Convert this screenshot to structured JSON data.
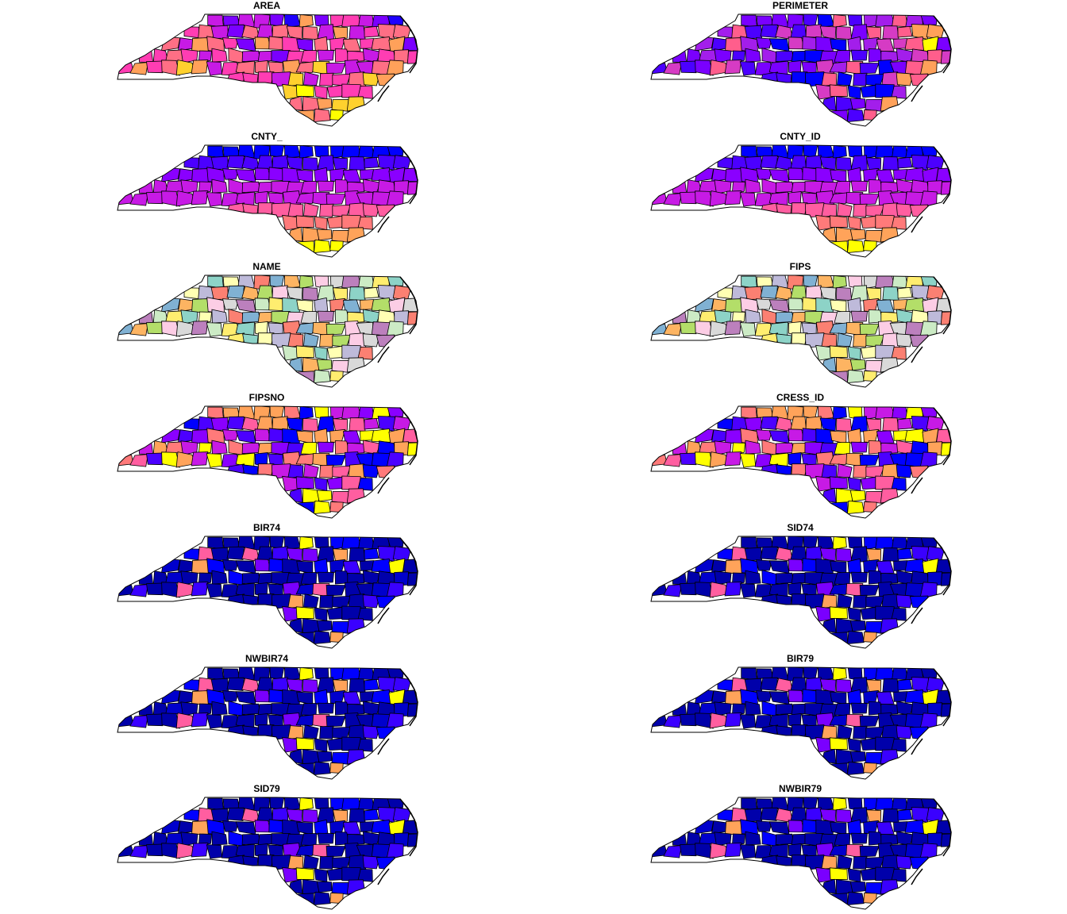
{
  "figure": {
    "panels": [
      {
        "title": "AREA",
        "palette": [
          "#1E00FF",
          "#7A00FF",
          "#C71AE5",
          "#FF3DB3",
          "#FF6F85",
          "#FFA15A",
          "#FFD12E",
          "#FFFF00"
        ],
        "mode": "area"
      },
      {
        "title": "PERIMETER",
        "palette": [
          "#0000FF",
          "#4B00FF",
          "#7A00FF",
          "#A31EEB",
          "#D63BC4",
          "#FF5E8C",
          "#FFA15A",
          "#FFFF00"
        ],
        "mode": "perimeter"
      },
      {
        "title": "CNTY_",
        "palette": [
          "#0000FF",
          "#4B00FF",
          "#8A00FF",
          "#C71AE5",
          "#FF5EA0",
          "#FF7A7A",
          "#FFA35A",
          "#FFFF00"
        ],
        "mode": "lat"
      },
      {
        "title": "CNTY_ID",
        "palette": [
          "#0000FF",
          "#4B00FF",
          "#8A00FF",
          "#C71AE5",
          "#FF5EA0",
          "#FF7A7A",
          "#FFA35A",
          "#FFFF00"
        ],
        "mode": "lat"
      },
      {
        "title": "NAME",
        "palette": [
          "#8DD3C7",
          "#FFFFB3",
          "#BEBADA",
          "#FB8072",
          "#80B1D3",
          "#FDB462",
          "#B3DE69",
          "#FCCDE5",
          "#D9D9D9",
          "#BC80BD",
          "#CCEBC5",
          "#FFED6F"
        ],
        "mode": "categorical"
      },
      {
        "title": "FIPS",
        "palette": [
          "#8DD3C7",
          "#FFFFB3",
          "#BEBADA",
          "#FB8072",
          "#80B1D3",
          "#FDB462",
          "#B3DE69",
          "#FCCDE5",
          "#D9D9D9",
          "#BC80BD",
          "#CCEBC5",
          "#FFED6F"
        ],
        "mode": "categorical"
      },
      {
        "title": "FIPSNO",
        "palette": [
          "#0000FF",
          "#4B00FF",
          "#8A00FF",
          "#C71AE5",
          "#FF5EA0",
          "#FF7A7A",
          "#FFA35A",
          "#FFFF00"
        ],
        "mode": "random"
      },
      {
        "title": "CRESS_ID",
        "palette": [
          "#0000FF",
          "#4B00FF",
          "#8A00FF",
          "#C71AE5",
          "#FF5EA0",
          "#FF7A7A",
          "#FFA35A",
          "#FFFF00"
        ],
        "mode": "random"
      },
      {
        "title": "BIR74",
        "palette": [
          "#0000AA",
          "#0000CC",
          "#0000FF",
          "#3A00FF",
          "#7A00FF",
          "#FF5EA0",
          "#FFA35A",
          "#FFFF00"
        ],
        "mode": "skew"
      },
      {
        "title": "SID74",
        "palette": [
          "#0000AA",
          "#0000CC",
          "#0000FF",
          "#3A00FF",
          "#7A00FF",
          "#FF5EA0",
          "#FFA35A",
          "#FFFF00"
        ],
        "mode": "skew"
      },
      {
        "title": "NWBIR74",
        "palette": [
          "#0000AA",
          "#0000CC",
          "#0000FF",
          "#3A00FF",
          "#7A00FF",
          "#FF5EA0",
          "#FFA35A",
          "#FFFF00"
        ],
        "mode": "skew"
      },
      {
        "title": "BIR79",
        "palette": [
          "#0000AA",
          "#0000CC",
          "#0000FF",
          "#3A00FF",
          "#7A00FF",
          "#FF5EA0",
          "#FFA35A",
          "#FFFF00"
        ],
        "mode": "skew"
      },
      {
        "title": "SID79",
        "palette": [
          "#0000AA",
          "#0000CC",
          "#0000FF",
          "#3A00FF",
          "#7A00FF",
          "#FF5EA0",
          "#FFA35A",
          "#FFFF00"
        ],
        "mode": "skew"
      },
      {
        "title": "NWBIR79",
        "palette": [
          "#0000AA",
          "#0000CC",
          "#0000FF",
          "#3A00FF",
          "#7A00FF",
          "#FF5EA0",
          "#FFA35A",
          "#FFFF00"
        ],
        "mode": "skew"
      }
    ]
  }
}
